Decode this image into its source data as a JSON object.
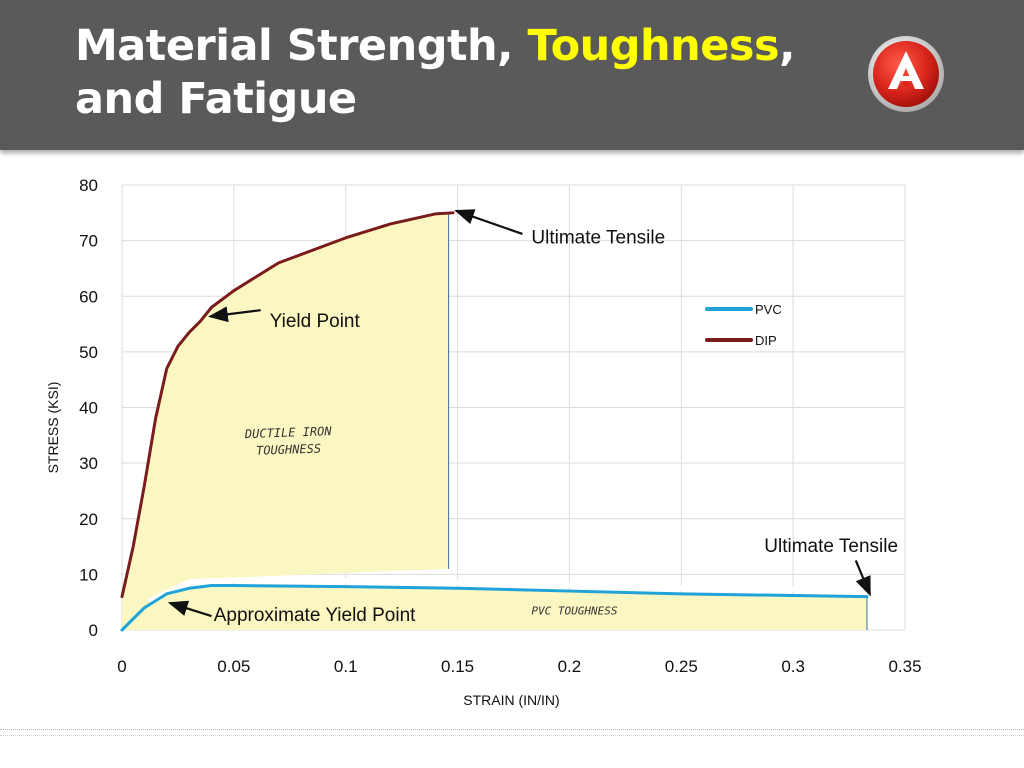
{
  "slide": {
    "title_part1": "Material Strength, ",
    "title_highlight": "Toughness",
    "title_part2": ",",
    "title_line2": "and Fatigue",
    "logo_icon": "company-logo-icon"
  },
  "colors": {
    "header_bg": "#5a5a5a",
    "title_text": "#ffffff",
    "title_highlight": "#ffff00",
    "pvc": "#1fa3d8",
    "dip": "#7a1c1c",
    "toughness_fill": "#fbf7c2"
  },
  "chart_data": {
    "type": "line",
    "xlabel": "STRAIN (IN/IN)",
    "ylabel": "STRESS (KSI)",
    "xlim": [
      0,
      0.35
    ],
    "ylim": [
      0,
      80
    ],
    "xticks": [
      0,
      0.05,
      0.1,
      0.15,
      0.2,
      0.25,
      0.3,
      0.35
    ],
    "xtick_labels": [
      "0",
      "0.05",
      "0.1",
      "0.15",
      "0.2",
      "0.25",
      "0.3",
      "0.35"
    ],
    "yticks": [
      0,
      10,
      20,
      30,
      40,
      50,
      60,
      70,
      80
    ],
    "ytick_labels": [
      "0",
      "10",
      "20",
      "30",
      "40",
      "50",
      "60",
      "70",
      "80"
    ],
    "grid": true,
    "legend": {
      "placement": "right-middle",
      "entries": [
        {
          "name": "PVC",
          "color": "#1fa3d8"
        },
        {
          "name": "DIP",
          "color": "#7a1c1c"
        }
      ]
    },
    "series": [
      {
        "name": "PVC",
        "color": "#1fa3d8",
        "x": [
          0,
          0.01,
          0.02,
          0.03,
          0.04,
          0.05,
          0.1,
          0.15,
          0.2,
          0.25,
          0.3,
          0.333
        ],
        "y": [
          0,
          4,
          6.5,
          7.5,
          8,
          8,
          7.8,
          7.5,
          7,
          6.5,
          6.2,
          6
        ]
      },
      {
        "name": "DIP",
        "color": "#7a1c1c",
        "x": [
          0,
          0.005,
          0.01,
          0.015,
          0.02,
          0.025,
          0.03,
          0.035,
          0.04,
          0.05,
          0.07,
          0.1,
          0.12,
          0.14,
          0.148
        ],
        "y": [
          6,
          15,
          26,
          38,
          47,
          51,
          53.5,
          55.5,
          58,
          61,
          66,
          70.5,
          73,
          74.8,
          75
        ]
      }
    ],
    "toughness_regions": [
      {
        "label_line1": "DUCTILE IRON",
        "label_line2": "TOUGHNESS",
        "x_end": 0.146
      },
      {
        "label_line1": "PVC TOUGHNESS",
        "label_line2": "",
        "x_end": 0.333
      }
    ],
    "annotations": [
      {
        "text": "Ultimate Tensile",
        "target_x": 0.148,
        "target_y": 75
      },
      {
        "text": "Yield Point",
        "target_x": 0.038,
        "target_y": 56
      },
      {
        "text": "Ultimate Tensile",
        "target_x": 0.333,
        "target_y": 6
      },
      {
        "text": "Approximate Yield Point",
        "target_x": 0.02,
        "target_y": 4.5
      }
    ]
  }
}
